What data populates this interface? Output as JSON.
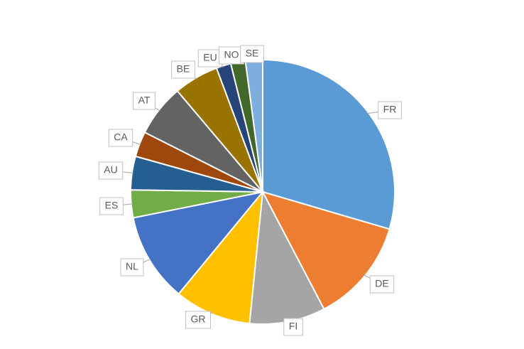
{
  "chart_data": {
    "type": "pie",
    "categories": [
      "FR",
      "DE",
      "FI",
      "GR",
      "NL",
      "ES",
      "AU",
      "CA",
      "AT",
      "BE",
      "EU",
      "NO",
      "SE"
    ],
    "values": [
      29.6,
      12.8,
      9.3,
      9.4,
      10.9,
      3.4,
      4.1,
      3.1,
      6.4,
      5.5,
      1.8,
      1.8,
      2.1
    ],
    "colors": [
      "#5b9bd5",
      "#ed7d31",
      "#a5a5a5",
      "#ffc000",
      "#4472c4",
      "#70ad47",
      "#255e91",
      "#9e480e",
      "#636363",
      "#997300",
      "#264478",
      "#43682b",
      "#7cafdd"
    ]
  }
}
